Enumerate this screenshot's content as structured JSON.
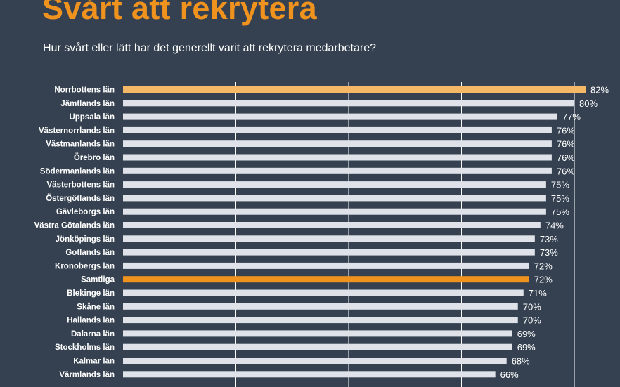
{
  "header": {
    "title": "Svårt att rekrytera",
    "subtitle": "Hur svårt eller lätt har det generellt varit att rekrytera medarbetare?"
  },
  "colors": {
    "background": "#354150",
    "bar_default": "#dfe2e9",
    "bar_highlight_light": "#f5b866",
    "bar_highlight": "#f0921e",
    "title": "#f0921e",
    "gridline": "#ffffff"
  },
  "chart_data": {
    "type": "bar",
    "orientation": "horizontal",
    "title": "Svårt att rekrytera",
    "subtitle": "Hur svårt eller lätt har det generellt varit att rekrytera medarbetare?",
    "xlabel": "",
    "ylabel": "",
    "value_suffix": "%",
    "xlim": [
      0,
      80
    ],
    "gridlines_at": [
      20,
      40,
      60,
      80
    ],
    "grid": true,
    "categories": [
      "Norrbottens län",
      "Jämtlands län",
      "Uppsala län",
      "Västernorrlands län",
      "Västmanlands län",
      "Örebro län",
      "Södermanlands län",
      "Västerbottens län",
      "Östergötlands län",
      "Gävleborgs län",
      "Västra Götalands län",
      "Jönköpings län",
      "Gotlands län",
      "Kronobergs län",
      "Samtliga",
      "Blekinge län",
      "Skåne län",
      "Hallands län",
      "Dalarna län",
      "Stockholms län",
      "Kalmar län",
      "Värmlands län"
    ],
    "values": [
      82,
      80,
      77,
      76,
      76,
      76,
      76,
      75,
      75,
      75,
      74,
      73,
      73,
      72,
      72,
      71,
      70,
      70,
      69,
      69,
      68,
      66
    ],
    "highlight": {
      "Norrbottens län": "bar_highlight_light",
      "Samtliga": "bar_highlight"
    }
  }
}
